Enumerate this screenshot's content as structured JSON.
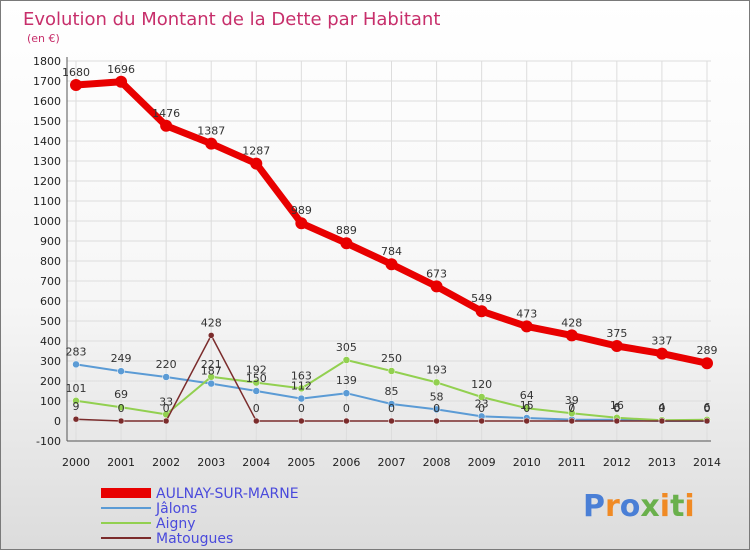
{
  "chart_data": {
    "type": "line",
    "title": "Evolution du Montant de la Dette par Habitant",
    "subtitle": "(en €)",
    "xlabel": "",
    "ylabel": "",
    "x": [
      "2000",
      "2001",
      "2002",
      "2003",
      "2004",
      "2005",
      "2006",
      "2007",
      "2008",
      "2009",
      "2010",
      "2011",
      "2012",
      "2013",
      "2014"
    ],
    "ylim": [
      -100,
      1800
    ],
    "yticks": [
      -100,
      0,
      100,
      200,
      300,
      400,
      500,
      600,
      700,
      800,
      900,
      1000,
      1100,
      1200,
      1300,
      1400,
      1500,
      1600,
      1700,
      1800
    ],
    "grid": true,
    "legend_position": "bottom-left",
    "series": [
      {
        "name": "AULNAY-SUR-MARNE",
        "color": "#e80000",
        "values": [
          1680,
          1696,
          1476,
          1387,
          1287,
          989,
          889,
          784,
          673,
          549,
          473,
          428,
          375,
          337,
          289
        ],
        "labels": [
          "1680",
          "1696",
          "1476",
          "1387",
          "1287",
          "989",
          "889",
          "784",
          "673",
          "549",
          "473",
          "428",
          "375",
          "337",
          "289"
        ]
      },
      {
        "name": "Jâlons",
        "color": "#5b9bd5",
        "values": [
          283,
          249,
          220,
          187,
          150,
          112,
          139,
          85,
          58,
          23,
          15,
          7,
          6,
          0,
          0
        ],
        "labels": [
          "283",
          "249",
          "220",
          "187",
          "150",
          "112",
          "139",
          "85",
          "58",
          "23",
          "15",
          "7",
          "6",
          "0",
          "0"
        ]
      },
      {
        "name": "Aigny",
        "color": "#92d050",
        "values": [
          101,
          69,
          33,
          221,
          192,
          163,
          305,
          250,
          193,
          120,
          64,
          39,
          16,
          4,
          6
        ],
        "labels": [
          "101",
          "69",
          "33",
          "221",
          "192",
          "163",
          "305",
          "250",
          "193",
          "120",
          "64",
          "39",
          "16",
          "4",
          "6"
        ]
      },
      {
        "name": "Matougues",
        "color": "#7b2c2c",
        "values": [
          9,
          0,
          0,
          428,
          0,
          0,
          0,
          0,
          0,
          0,
          0,
          0,
          0,
          0,
          0
        ],
        "labels": [
          "9",
          "0",
          "0",
          "428",
          "0",
          "0",
          "0",
          "0",
          "0",
          "0",
          "0",
          "0",
          "0",
          "0",
          "0"
        ]
      }
    ]
  },
  "logo": {
    "text": "Proxiti",
    "letters": [
      "P",
      "r",
      "o",
      "x",
      "i",
      "t",
      "i"
    ],
    "colors": [
      "#4a7fd6",
      "#f08a24",
      "#4a7fd6",
      "#6ab04c",
      "#f08a24",
      "#6ab04c",
      "#f08a24"
    ]
  }
}
